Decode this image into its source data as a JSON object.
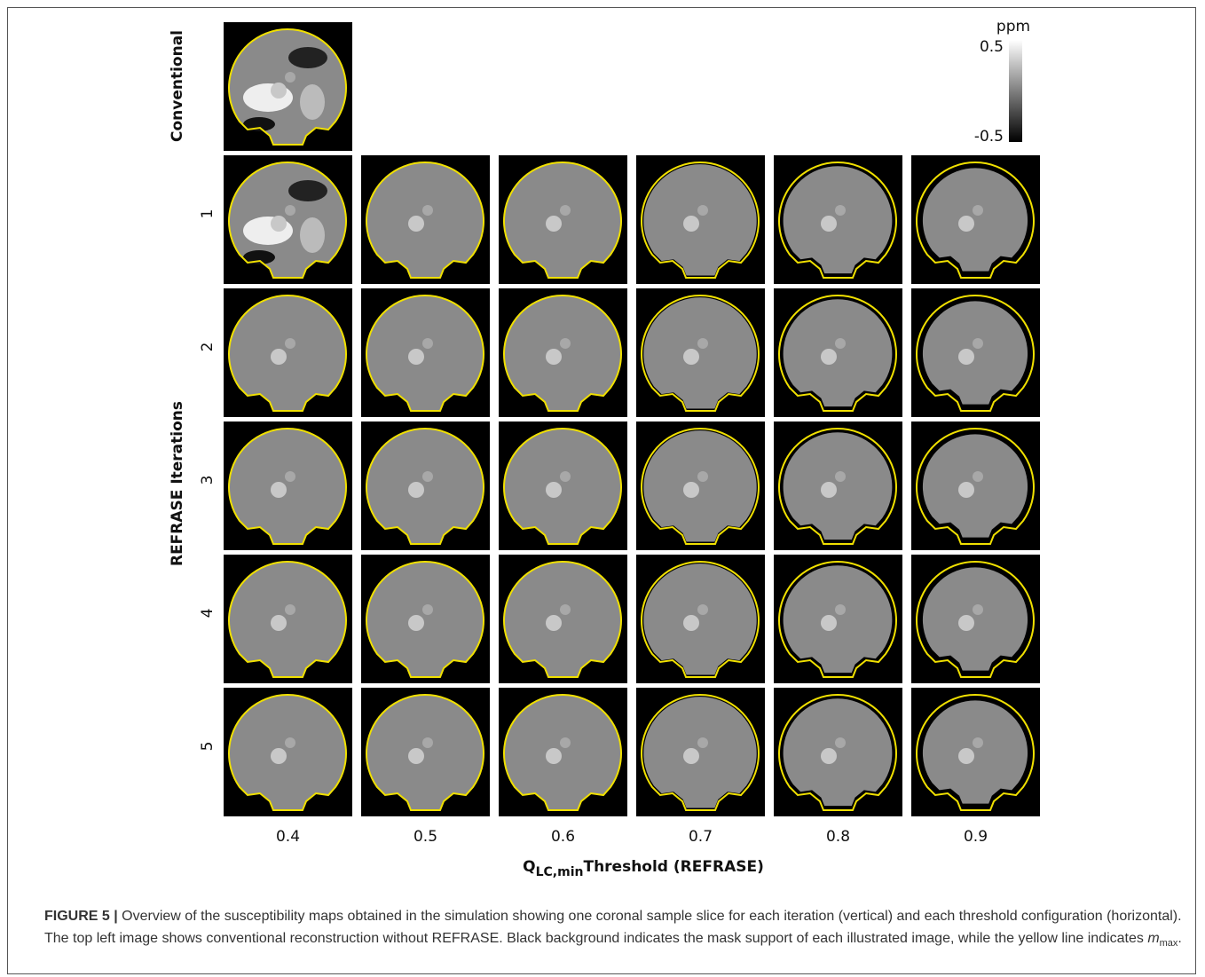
{
  "figure": {
    "row_title_top": "Conventional",
    "y_axis_title": "REFRASE Iterations",
    "row_labels": [
      "1",
      "2",
      "3",
      "4",
      "5"
    ],
    "column_labels": [
      "0.4",
      "0.5",
      "0.6",
      "0.7",
      "0.8",
      "0.9"
    ],
    "x_axis_title": {
      "main": "Q",
      "sub": "LC,min",
      "rest": "Threshold (REFRASE)"
    },
    "colorbar": {
      "unit": "ppm",
      "max": "0.5",
      "min": "-0.5"
    }
  },
  "caption": {
    "label": "FIGURE 5 |",
    "text": "Overview of the susceptibility maps obtained in the simulation showing one coronal sample slice for each iteration (vertical) and each threshold configuration (horizontal). The top left image shows conventional reconstruction without REFRASE. Black background indicates the mask support of each illustrated image, while the yellow line indicates",
    "symbol": "m",
    "symbol_sub": "max",
    "end": "."
  }
}
